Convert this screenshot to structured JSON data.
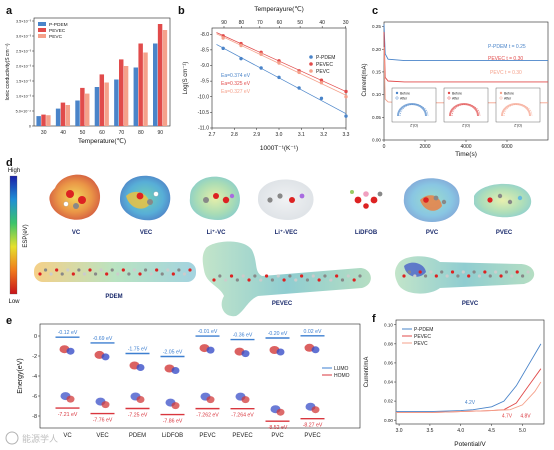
{
  "panels": {
    "a": {
      "letter": "a",
      "ylabel": "Ionic conductivity(S cm⁻¹)",
      "xlabel": "Temperature(℃)",
      "yticks": [
        "0",
        "5.0×10⁻⁴",
        "1.0×10⁻³",
        "1.5×10⁻³",
        "2.0×10⁻³",
        "2.5×10⁻³",
        "3.0×10⁻³",
        "3.5×10⁻³"
      ],
      "legend": [
        "P-PDEM",
        "PEVEC",
        "PEVC"
      ]
    },
    "b": {
      "letter": "b",
      "top_xlabel": "Temperayure(℃)",
      "top_ticks": [
        "90",
        "80",
        "70",
        "60",
        "50",
        "40",
        "30"
      ],
      "xlabel": "1000T⁻¹(K⁻¹)",
      "ylabel": "Log(S cm⁻¹)",
      "legend": [
        "P-PDEM",
        "PEVEC",
        "PEVC"
      ],
      "ea_labels": [
        "Ea=0.374 eV",
        "Ea=0.325 eV",
        "Ea=0.327 eV"
      ]
    },
    "c": {
      "letter": "c",
      "ylabel": "Current(mA)",
      "xlabel": "Time(s)",
      "xticks": [
        "0",
        "2000",
        "4000",
        "6000"
      ],
      "yticks": [
        "0.00",
        "0.05",
        "0.10",
        "0.15",
        "0.20",
        "0.25"
      ],
      "trace_labels": [
        "P-PDEM  t = 0.25",
        "PEVEC  t = 0.30",
        "PEVC  t = 0.30"
      ],
      "inset_xlabel": "Z'(Ω)",
      "inset_ylabel": "-Z\"(Ω)",
      "inset_legend": [
        "Before",
        "After"
      ]
    },
    "d": {
      "letter": "d",
      "scale_top": "High",
      "scale_bottom": "Low",
      "scale_label": "ESP(eV)",
      "molecules_top": [
        "VC",
        "VEC",
        "Li⁺-VC",
        "Li⁺-VEC",
        "LiDFOB",
        "PVC",
        "PVEC"
      ],
      "molecules_bottom": [
        "PDEM",
        "PEVEC",
        "PEVC"
      ]
    },
    "e": {
      "letter": "e",
      "ylabel": "Energy(eV)",
      "yticks": [
        "0",
        "-2",
        "-4",
        "-6",
        "-8"
      ],
      "categories": [
        "VC",
        "VEC",
        "PDEM",
        "LiDFOB",
        "PEVC",
        "PEVEC",
        "PVC",
        "PVEC"
      ],
      "legend": [
        "LUMO",
        "HOMO"
      ],
      "colors": {
        "lumo": "#3d7fd0",
        "homo": "#d9363e"
      }
    },
    "f": {
      "letter": "f",
      "ylabel": "Current/mA",
      "xlabel": "Potential/V",
      "xticks": [
        "3.0",
        "3.5",
        "4.0",
        "4.5",
        "5.0"
      ],
      "yticks": [
        "0.00",
        "0.02",
        "0.04",
        "0.06",
        "0.08",
        "0.10"
      ],
      "legend": [
        "P-PDEM",
        "PEVEC",
        "PEVC"
      ],
      "annotations": [
        "4.2V",
        "4.7V",
        "4.8V"
      ]
    }
  },
  "watermark": "能源学人",
  "chart_data": [
    {
      "panel": "a",
      "type": "bar",
      "categories": [
        "30",
        "40",
        "50",
        "60",
        "70",
        "80",
        "90"
      ],
      "series": [
        {
          "name": "P-PDEM",
          "values": [
            0.00033,
            0.00058,
            0.00085,
            0.0013,
            0.00155,
            0.00195,
            0.00275
          ],
          "color": "#4a84c9"
        },
        {
          "name": "PEVEC",
          "values": [
            0.00038,
            0.00078,
            0.00127,
            0.00172,
            0.00222,
            0.00275,
            0.0034
          ],
          "color": "#e14b4b"
        },
        {
          "name": "PEVC",
          "values": [
            0.00036,
            0.0007,
            0.00108,
            0.00145,
            0.002,
            0.00245,
            0.0032
          ],
          "color": "#f5a18b"
        }
      ],
      "xlabel": "Temperature(℃)",
      "ylabel": "Ionic conductivity(S cm⁻¹)",
      "ylim": [
        0,
        0.0036
      ],
      "legend_position": "top-left"
    },
    {
      "panel": "b",
      "type": "scatter",
      "x_ticks": [
        2.7,
        2.8,
        2.9,
        3.0,
        3.1,
        3.2,
        3.3
      ],
      "y_ticks": [
        -8.0,
        -8.5,
        -9.0,
        -9.5,
        -10.0,
        -10.5,
        -11.0
      ],
      "series": [
        {
          "name": "P-PDEM",
          "x": [
            2.75,
            2.83,
            2.92,
            3.0,
            3.09,
            3.19,
            3.3
          ],
          "y": [
            -8.45,
            -8.78,
            -9.08,
            -9.38,
            -9.72,
            -10.05,
            -10.62
          ],
          "color": "#4a84c9"
        },
        {
          "name": "PEVEC",
          "x": [
            2.75,
            2.83,
            2.92,
            3.0,
            3.09,
            3.19,
            3.3
          ],
          "y": [
            -8.05,
            -8.3,
            -8.58,
            -8.85,
            -9.17,
            -9.47,
            -9.83
          ],
          "color": "#e14b4b"
        },
        {
          "name": "PEVC",
          "x": [
            2.75,
            2.83,
            2.92,
            3.0,
            3.09,
            3.19,
            3.3
          ],
          "y": [
            -8.12,
            -8.36,
            -8.64,
            -8.92,
            -9.22,
            -9.55,
            -10.0
          ],
          "color": "#f5a18b"
        }
      ],
      "xlabel": "1000T⁻¹(K⁻¹)",
      "ylabel": "Log(S cm⁻¹)",
      "xlim": [
        2.7,
        3.3
      ],
      "ylim": [
        -11.0,
        -7.8
      ]
    },
    {
      "panel": "c",
      "type": "line",
      "series": [
        {
          "name": "P-PDEM",
          "t": 0.25,
          "x": [
            0,
            60,
            200,
            1000,
            8000
          ],
          "y": [
            0.255,
            0.19,
            0.178,
            0.175,
            0.175
          ],
          "color": "#4a84c9"
        },
        {
          "name": "PEVEC",
          "t": 0.3,
          "x": [
            0,
            60,
            200,
            1000,
            8000
          ],
          "y": [
            0.238,
            0.138,
            0.13,
            0.128,
            0.128
          ],
          "color": "#e14b4b"
        },
        {
          "name": "PEVC",
          "t": 0.3,
          "x": [
            0,
            60,
            200,
            1000,
            8000
          ],
          "y": [
            0.205,
            0.09,
            0.084,
            0.082,
            0.082
          ],
          "color": "#f5a18b"
        }
      ],
      "xlabel": "Time(s)",
      "ylabel": "Current(mA)",
      "xlim": [
        0,
        8000
      ],
      "ylim": [
        0,
        0.26
      ]
    },
    {
      "panel": "e",
      "type": "bar",
      "categories": [
        "VC",
        "VEC",
        "PDEM",
        "LiDFOB",
        "PEVC",
        "PEVEC",
        "PVC",
        "PVEC"
      ],
      "series": [
        {
          "name": "LUMO",
          "values": [
            -0.12,
            -0.69,
            -1.75,
            -2.05,
            -0.01,
            -0.36,
            -0.2,
            0.02
          ]
        },
        {
          "name": "HOMO",
          "values": [
            -7.21,
            -7.76,
            -7.25,
            -7.86,
            -7.262,
            -7.264,
            -8.52,
            -8.27
          ]
        }
      ],
      "value_labels_lumo": [
        "-0.12 eV",
        "-0.69 eV",
        "-1.75 eV",
        "-2.05 eV",
        "-0.01 eV",
        "-0.36 eV",
        "-0.20 eV",
        "0.02 eV"
      ],
      "value_labels_homo": [
        "-7.21 eV",
        "-7.76 eV",
        "-7.25 eV",
        "-7.86 eV",
        "-7.262 eV",
        "-7.264 eV",
        "-8.52 eV",
        "-8.27 eV"
      ],
      "ylabel": "Energy(eV)",
      "ylim": [
        -9.2,
        1.2
      ]
    },
    {
      "panel": "f",
      "type": "line",
      "series": [
        {
          "name": "P-PDEM",
          "x": [
            2.95,
            3.5,
            4.0,
            4.2,
            4.5,
            4.7,
            4.9,
            5.1,
            5.3
          ],
          "y": [
            0.009,
            0.009,
            0.01,
            0.011,
            0.014,
            0.02,
            0.036,
            0.058,
            0.08
          ],
          "color": "#4a84c9"
        },
        {
          "name": "PEVEC",
          "x": [
            2.95,
            3.5,
            4.0,
            4.5,
            4.7,
            4.9,
            5.1,
            5.3
          ],
          "y": [
            0.008,
            0.008,
            0.009,
            0.01,
            0.011,
            0.018,
            0.036,
            0.054
          ],
          "color": "#e14b4b"
        },
        {
          "name": "PEVC",
          "x": [
            2.95,
            3.5,
            4.0,
            4.5,
            4.8,
            5.0,
            5.2,
            5.3
          ],
          "y": [
            0.008,
            0.008,
            0.009,
            0.01,
            0.011,
            0.016,
            0.03,
            0.04
          ],
          "color": "#f5a18b"
        }
      ],
      "xlabel": "Potential/V",
      "ylabel": "Current/mA",
      "xlim": [
        2.95,
        5.35
      ],
      "ylim": [
        -0.004,
        0.105
      ]
    }
  ]
}
